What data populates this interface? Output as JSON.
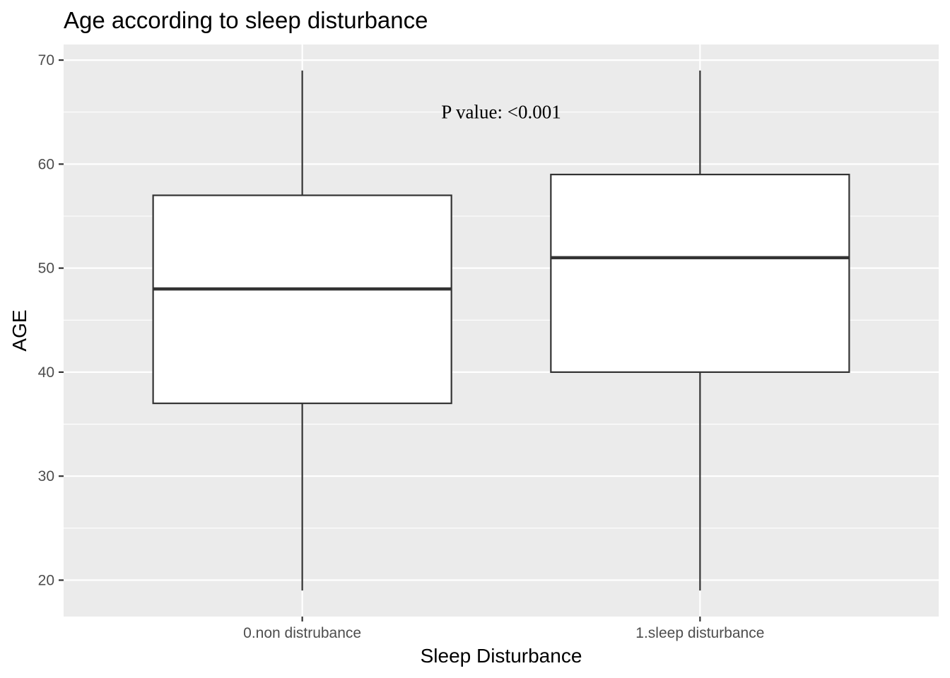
{
  "chart_data": {
    "type": "box",
    "title": "Age according to sleep disturbance",
    "xlabel": "Sleep Disturbance",
    "ylabel": "AGE",
    "categories": [
      "0.non distrubance",
      "1.sleep disturbance"
    ],
    "boxes": [
      {
        "category": "0.non distrubance",
        "min": 19,
        "q1": 37,
        "median": 48,
        "q3": 57,
        "max": 69
      },
      {
        "category": "1.sleep disturbance",
        "min": 19,
        "q1": 40,
        "median": 51,
        "q3": 59,
        "max": 69
      }
    ],
    "ylim": [
      16.5,
      71.5
    ],
    "yticks": [
      20,
      30,
      40,
      50,
      60,
      70
    ],
    "grid": true,
    "annotation": {
      "text": "P value:  <0.001",
      "x_between_categories": 0.5,
      "y": 65
    },
    "colors": {
      "panel_background": "#ebebeb",
      "grid": "#ffffff",
      "box_fill": "#ffffff",
      "box_line": "#333333"
    }
  }
}
